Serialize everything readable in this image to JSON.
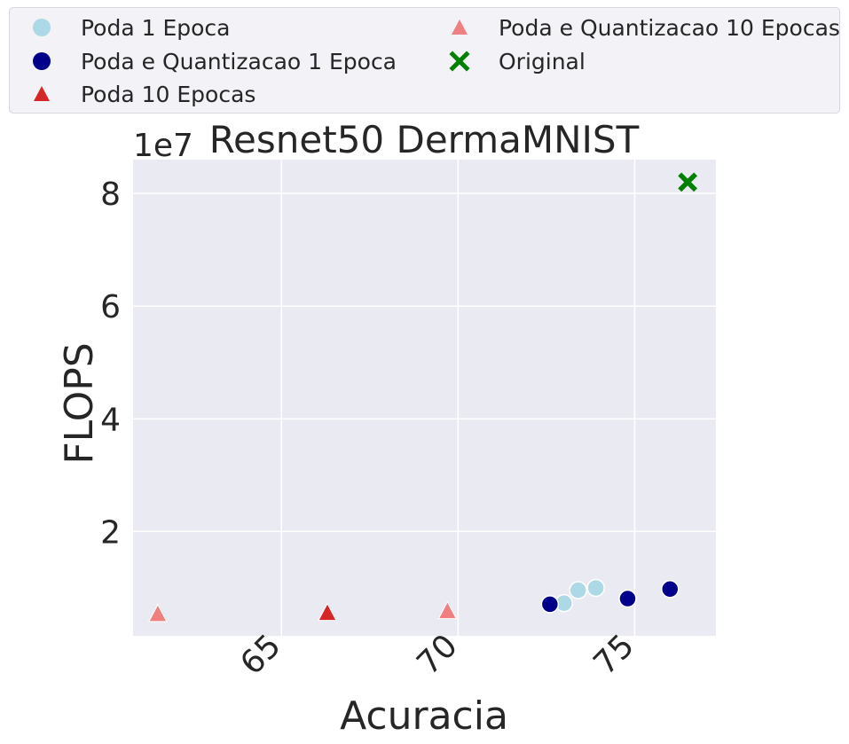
{
  "chart_data": {
    "type": "scatter",
    "title": "Resnet50 DermaMNIST",
    "xlabel": "Acuracia",
    "ylabel": "FLOPS",
    "offset_text": "1e7",
    "xlim": [
      60.8,
      77.3
    ],
    "ylim": [
      1500000.0,
      86000000.0
    ],
    "xticks": [
      65,
      70,
      75
    ],
    "xtick_labels": [
      "65",
      "70",
      "75"
    ],
    "yticks": [
      20000000.0,
      40000000.0,
      60000000.0,
      80000000.0
    ],
    "ytick_labels": [
      "2",
      "4",
      "6",
      "8"
    ],
    "grid": true,
    "legend_position": "top",
    "series": [
      {
        "name": "Poda 1 Epoca",
        "marker": "circle",
        "color": "#add8e6",
        "points": [
          [
            73.0,
            7300000.0
          ],
          [
            73.4,
            9600000.0
          ],
          [
            73.9,
            10000000.0
          ]
        ]
      },
      {
        "name": "Poda e Quantizacao 1 Epoca",
        "marker": "circle",
        "color": "#00008b",
        "points": [
          [
            72.6,
            7100000.0
          ],
          [
            74.8,
            8100000.0
          ],
          [
            76.0,
            9800000.0
          ]
        ]
      },
      {
        "name": "Poda 10 Epocas",
        "marker": "triangle",
        "color": "#d62728",
        "points": [
          [
            66.3,
            5500000.0
          ]
        ]
      },
      {
        "name": "Poda e Quantizacao 10 Epocas",
        "marker": "triangle",
        "color": "#f08080",
        "points": [
          [
            61.5,
            5300000.0
          ],
          [
            69.7,
            5800000.0
          ]
        ]
      },
      {
        "name": "Original",
        "marker": "x",
        "color": "#008000",
        "points": [
          [
            76.5,
            82000000.0
          ]
        ]
      }
    ]
  }
}
